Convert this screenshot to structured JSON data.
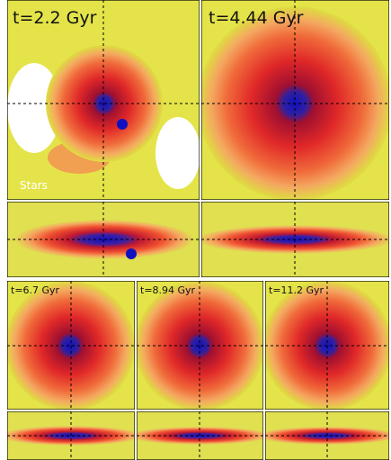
{
  "top_row": [
    {
      "time": "t=2.2 Gyr",
      "tracer": "Stars"
    },
    {
      "time": "t=4.44 Gyr"
    }
  ],
  "bottom_row": [
    {
      "time": "t=6.7 Gyr"
    },
    {
      "time": "t=8.94 Gyr"
    },
    {
      "time": "t=11.2 Gyr"
    }
  ]
}
